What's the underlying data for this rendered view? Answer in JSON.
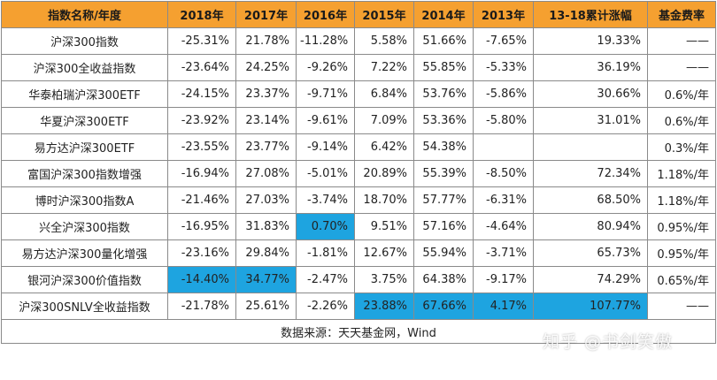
{
  "table": {
    "headers": [
      "指数名称/年度",
      "2018年",
      "2017年",
      "2016年",
      "2015年",
      "2014年",
      "2013年",
      "13-18累计涨幅",
      "基金费率"
    ],
    "rows": [
      {
        "name": "沪深300指数",
        "cells": [
          "-25.31%",
          "21.78%",
          "-11.28%",
          "5.58%",
          "51.66%",
          "-7.65%",
          "19.33%",
          "——"
        ],
        "highlight": []
      },
      {
        "name": "沪深300全收益指数",
        "cells": [
          "-23.64%",
          "24.25%",
          "-9.26%",
          "7.22%",
          "55.85%",
          "-5.33%",
          "36.19%",
          "——"
        ],
        "highlight": []
      },
      {
        "name": "华泰柏瑞沪深300ETF",
        "cells": [
          "-24.15%",
          "23.37%",
          "-9.71%",
          "6.84%",
          "53.76%",
          "-5.86%",
          "30.66%",
          "0.6%/年"
        ],
        "highlight": []
      },
      {
        "name": "华夏沪深300ETF",
        "cells": [
          "-23.92%",
          "23.14%",
          "-9.61%",
          "7.09%",
          "53.36%",
          "-5.80%",
          "31.01%",
          "0.6%/年"
        ],
        "highlight": []
      },
      {
        "name": "易方达沪深300ETF",
        "cells": [
          "-23.55%",
          "23.77%",
          "-9.14%",
          "6.42%",
          "54.38%",
          "",
          "",
          "0.3%/年"
        ],
        "highlight": []
      },
      {
        "name": "富国沪深300指数增强",
        "cells": [
          "-16.94%",
          "27.08%",
          "-5.01%",
          "20.89%",
          "55.39%",
          "-8.50%",
          "72.34%",
          "1.18%/年"
        ],
        "highlight": []
      },
      {
        "name": "博时沪深300指数A",
        "cells": [
          "-21.46%",
          "27.03%",
          "-3.74%",
          "18.70%",
          "57.77%",
          "-6.31%",
          "68.50%",
          "1.18%/年"
        ],
        "highlight": []
      },
      {
        "name": "兴全沪深300指数",
        "cells": [
          "-16.95%",
          "31.83%",
          "0.70%",
          "9.51%",
          "57.16%",
          "-4.64%",
          "80.94%",
          "0.95%/年"
        ],
        "highlight": [
          2
        ]
      },
      {
        "name": "易方达沪深300量化增强",
        "cells": [
          "-23.16%",
          "29.84%",
          "-1.81%",
          "12.67%",
          "55.94%",
          "-3.71%",
          "65.73%",
          "0.95%/年"
        ],
        "highlight": []
      },
      {
        "name": "银河沪深300价值指数",
        "cells": [
          "-14.40%",
          "34.77%",
          "-2.47%",
          "3.75%",
          "64.38%",
          "-9.17%",
          "74.29%",
          "0.65%/年"
        ],
        "highlight": [
          0,
          1
        ]
      },
      {
        "name": "沪深300SNLV全收益指数",
        "cells": [
          "-21.78%",
          "25.61%",
          "-2.26%",
          "23.88%",
          "67.66%",
          "4.17%",
          "107.77%",
          "——"
        ],
        "highlight": [
          3,
          4,
          5,
          6
        ]
      }
    ],
    "source": "数据来源：天天基金网，Wind"
  },
  "watermark": "知乎 @书剑笑傲",
  "colors": {
    "header_bg": "#f5a030",
    "highlight_bg": "#1ea4e0",
    "border": "#8a8a8a"
  }
}
